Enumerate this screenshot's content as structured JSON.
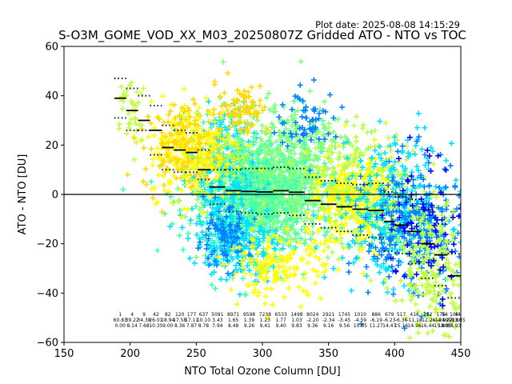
{
  "chart_data": {
    "type": "scatter",
    "title": "S-O3M_GOME_VOD_XX_M03_20250807Z Gridded ATO - NTO vs TOC",
    "plot_date": "Plot date: 2025-08-08 14:15:29",
    "xlabel": "NTO Total Ozone Column [DU]",
    "ylabel": "ATO - NTO [DU]",
    "xlim": [
      150,
      450
    ],
    "ylim": [
      -60,
      60
    ],
    "xticks": [
      150,
      200,
      250,
      300,
      350,
      400,
      450
    ],
    "yticks": [
      -60,
      -40,
      -20,
      0,
      20,
      40,
      60
    ],
    "zero_line": 0,
    "marker": "+",
    "colors": {
      "dark_blue": "#0000ff",
      "blue": "#0080ff",
      "cyan": "#00e0ff",
      "aqua_green": "#40ffb0",
      "light_green": "#80ff80",
      "yellow_green": "#c0ff40",
      "yellow": "#ffff00",
      "gold": "#ffd800",
      "orange": "#ffb000"
    },
    "clusters": [
      {
        "cx": 300,
        "cy": 0,
        "sx": 22,
        "sy": 10,
        "n": 900,
        "color": "light_green"
      },
      {
        "cx": 300,
        "cy": 0,
        "sx": 28,
        "sy": 13,
        "n": 500,
        "color": "aqua_green"
      },
      {
        "cx": 270,
        "cy": 8,
        "sx": 12,
        "sy": 14,
        "n": 250,
        "color": "cyan"
      },
      {
        "cx": 250,
        "cy": 18,
        "sx": 18,
        "sy": 10,
        "n": 280,
        "color": "yellow"
      },
      {
        "cx": 240,
        "cy": 20,
        "sx": 15,
        "sy": 9,
        "n": 150,
        "color": "gold"
      },
      {
        "cx": 320,
        "cy": 18,
        "sx": 25,
        "sy": 10,
        "n": 300,
        "color": "light_green"
      },
      {
        "cx": 380,
        "cy": 2,
        "sx": 20,
        "sy": 12,
        "n": 320,
        "color": "yellow_green"
      },
      {
        "cx": 370,
        "cy": -5,
        "sx": 18,
        "sy": 10,
        "n": 280,
        "color": "yellow"
      },
      {
        "cx": 400,
        "cy": -6,
        "sx": 22,
        "sy": 14,
        "n": 320,
        "color": "cyan"
      },
      {
        "cx": 415,
        "cy": -15,
        "sx": 18,
        "sy": 14,
        "n": 260,
        "color": "blue"
      },
      {
        "cx": 430,
        "cy": -30,
        "sx": 14,
        "sy": 12,
        "n": 220,
        "color": "yellow_green"
      },
      {
        "cx": 425,
        "cy": -10,
        "sx": 16,
        "sy": 14,
        "n": 80,
        "color": "dark_blue"
      },
      {
        "cx": 280,
        "cy": -20,
        "sx": 15,
        "sy": 7,
        "n": 200,
        "color": "cyan"
      },
      {
        "cx": 270,
        "cy": -18,
        "sx": 10,
        "sy": 6,
        "n": 90,
        "color": "blue"
      },
      {
        "cx": 310,
        "cy": -30,
        "sx": 18,
        "sy": 6,
        "n": 150,
        "color": "yellow"
      },
      {
        "cx": 200,
        "cy": 35,
        "sx": 8,
        "sy": 8,
        "n": 40,
        "color": "yellow_green"
      },
      {
        "cx": 285,
        "cy": 35,
        "sx": 10,
        "sy": 5,
        "n": 80,
        "color": "gold"
      },
      {
        "cx": 335,
        "cy": 30,
        "sx": 12,
        "sy": 6,
        "n": 60,
        "color": "blue"
      }
    ],
    "bins": [
      {
        "x0": 188,
        "x1": 197,
        "mean": 39,
        "upper": 47,
        "lower": 31,
        "count": "1",
        "std": "60.83",
        "mad": "0.00"
      },
      {
        "x0": 197,
        "x1": 206,
        "mean": 34,
        "upper": 43,
        "lower": 26,
        "count": "4",
        "std": "39.22",
        "mad": "8.14"
      },
      {
        "x0": 206,
        "x1": 215,
        "mean": 30,
        "upper": 40,
        "lower": 26,
        "count": "9",
        "std": "34.38",
        "mad": "7.68"
      },
      {
        "x0": 215,
        "x1": 224,
        "mean": 26,
        "upper": 36,
        "lower": 16,
        "count": "42",
        "std": "26.01",
        "mad": "10.35"
      },
      {
        "x0": 224,
        "x1": 233,
        "mean": 19,
        "upper": 28,
        "lower": 10,
        "count": "82",
        "std": "18.94",
        "mad": "9.00"
      },
      {
        "x0": 233,
        "x1": 242,
        "mean": 18,
        "upper": 26,
        "lower": 9,
        "count": "120",
        "std": "17.58",
        "mad": "8.36"
      },
      {
        "x0": 242,
        "x1": 251,
        "mean": 17,
        "upper": 25,
        "lower": 9,
        "count": "177",
        "std": "17.11",
        "mad": "7.87"
      },
      {
        "x0": 251,
        "x1": 260,
        "mean": 10,
        "upper": 18,
        "lower": 6,
        "count": "637",
        "std": "10.10",
        "mad": "8.78"
      },
      {
        "x0": 260,
        "x1": 272,
        "mean": 3,
        "upper": 10,
        "lower": -4,
        "count": "5091",
        "std": "3.43",
        "mad": "7.94"
      },
      {
        "x0": 272,
        "x1": 284,
        "mean": 1.5,
        "upper": 10,
        "lower": -7,
        "count": "8971",
        "std": "1.65",
        "mad": "8.48"
      },
      {
        "x0": 284,
        "x1": 296,
        "mean": 1.2,
        "upper": 10.5,
        "lower": -7.5,
        "count": "9598",
        "std": "1.39",
        "mad": "9.26"
      },
      {
        "x0": 296,
        "x1": 308,
        "mean": 1,
        "upper": 10.5,
        "lower": -8,
        "count": "7238",
        "std": "1.23",
        "mad": "9.41"
      },
      {
        "x0": 308,
        "x1": 320,
        "mean": 1.5,
        "upper": 11,
        "lower": -7.5,
        "count": "6533",
        "std": "1.77",
        "mad": "9.40"
      },
      {
        "x0": 320,
        "x1": 332,
        "mean": 0.9,
        "upper": 10.5,
        "lower": -8.5,
        "count": "1498",
        "std": "1.03",
        "mad": "9.83"
      },
      {
        "x0": 332,
        "x1": 344,
        "mean": -2.5,
        "upper": 7,
        "lower": -12,
        "count": "8024",
        "std": "-2.20",
        "mad": "9.36"
      },
      {
        "x0": 344,
        "x1": 356,
        "mean": -4,
        "upper": 5.5,
        "lower": -13.5,
        "count": "2921",
        "std": "-2.34",
        "mad": "9.16"
      },
      {
        "x0": 356,
        "x1": 368,
        "mean": -5,
        "upper": 4.5,
        "lower": -15,
        "count": "1745",
        "std": "-3.45",
        "mad": "9.56"
      },
      {
        "x0": 368,
        "x1": 380,
        "mean": -6,
        "upper": 4,
        "lower": -16.5,
        "count": "1010",
        "std": "-4.59",
        "mad": "10.85"
      },
      {
        "x0": 380,
        "x1": 392,
        "mean": -6.5,
        "upper": 4.5,
        "lower": -17.5,
        "count": "886",
        "std": "-6.19",
        "mad": "11.27"
      },
      {
        "x0": 392,
        "x1": 400,
        "mean": -11,
        "upper": 1,
        "lower": -23,
        "count": "679",
        "std": "-6.23",
        "mad": "14.47"
      },
      {
        "x0": 400,
        "x1": 410,
        "mean": -12.5,
        "upper": -1,
        "lower": -24,
        "count": "517",
        "std": "-6.36",
        "mad": "15.16"
      },
      {
        "x0": 410,
        "x1": 420,
        "mean": -15,
        "upper": -2,
        "lower": -28,
        "count": "416",
        "std": "-11.18",
        "mad": "14.96"
      },
      {
        "x0": 420,
        "x1": 430,
        "mean": -20,
        "upper": -6,
        "lower": -34,
        "count": "252",
        "std": "-12.26",
        "mad": "16.44"
      },
      {
        "x0": 430,
        "x1": 440,
        "mean": -24.5,
        "upper": -12,
        "lower": -37,
        "count": "176",
        "std": "-14.99",
        "mad": "15.80"
      },
      {
        "x0": 440,
        "x1": 450,
        "mean": -33,
        "upper": -24,
        "lower": -42,
        "count": "106",
        "std": "-19.86",
        "mad": "18.93"
      }
    ],
    "bin_stat_rows_right": {
      "count": [
        "54",
        "44"
      ],
      "std": [
        "-24.27",
        "-33.35"
      ],
      "mad": [
        "18.95",
        ""
      ]
    }
  }
}
